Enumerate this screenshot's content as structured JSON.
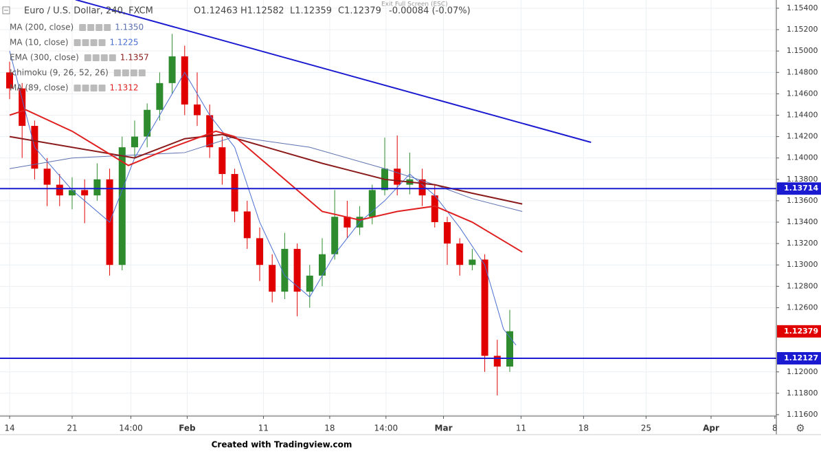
{
  "header": {
    "symbol": "Euro / U.S. Dollar, 240, FXCM",
    "open": "O1.12463",
    "high": "H1.12582",
    "low": "L1.12359",
    "close": "C1.12379",
    "change": "-0.00084 (-0.07%)",
    "exit_full_screen": "Exit Full Screen (ESC)"
  },
  "footer": "Created with Tradingview.com",
  "chart_data": {
    "type": "candlestick",
    "up_color": "#2e8b2e",
    "down_color": "#e00000",
    "xlim": [
      -0.769,
      61.32
    ],
    "xticks": [
      {
        "value": 0,
        "label": "14"
      },
      {
        "value": 5,
        "label": "21"
      },
      {
        "value": 9.7,
        "label": "14:00"
      },
      {
        "value": 14.2,
        "label": "Feb"
      },
      {
        "value": 20.3,
        "label": "11"
      },
      {
        "value": 25.6,
        "label": "18"
      },
      {
        "value": 30.1,
        "label": "14:00"
      },
      {
        "value": 34.7,
        "label": "Mar"
      },
      {
        "value": 40.9,
        "label": "11"
      },
      {
        "value": 45.9,
        "label": "18"
      },
      {
        "value": 50.9,
        "label": "25"
      },
      {
        "value": 56.1,
        "label": "Apr"
      },
      {
        "value": 61.2,
        "label": "8"
      }
    ],
    "ylim": [
      1.11587,
      1.15477
    ],
    "yticks": [
      {
        "value": 1.154,
        "label": "1.15400"
      },
      {
        "value": 1.152,
        "label": "1.15200"
      },
      {
        "value": 1.15,
        "label": "1.15000"
      },
      {
        "value": 1.148,
        "label": "1.14800"
      },
      {
        "value": 1.146,
        "label": "1.14600"
      },
      {
        "value": 1.144,
        "label": "1.14400"
      },
      {
        "value": 1.142,
        "label": "1.14200"
      },
      {
        "value": 1.14,
        "label": "1.14000"
      },
      {
        "value": 1.138,
        "label": "1.13800"
      },
      {
        "value": 1.136,
        "label": "1.13600"
      },
      {
        "value": 1.134,
        "label": "1.13400"
      },
      {
        "value": 1.132,
        "label": "1.13200"
      },
      {
        "value": 1.13,
        "label": "1.13000"
      },
      {
        "value": 1.128,
        "label": "1.12800"
      },
      {
        "value": 1.126,
        "label": "1.12600"
      },
      {
        "value": 1.12,
        "label": "1.12000"
      },
      {
        "value": 1.118,
        "label": "1.11800"
      },
      {
        "value": 1.116,
        "label": "1.11600"
      }
    ],
    "grid": true,
    "x": [
      0,
      1,
      2,
      3,
      4,
      5,
      6,
      7,
      8,
      9,
      10,
      11,
      12,
      13,
      14,
      15,
      16,
      17,
      18,
      19,
      20,
      21,
      22,
      23,
      24,
      25,
      26,
      27,
      28,
      29,
      30,
      31,
      32,
      33,
      34,
      35,
      36,
      37,
      38,
      39,
      40
    ],
    "open": [
      1.148,
      1.1465,
      1.143,
      1.139,
      1.1375,
      1.1365,
      1.137,
      1.1365,
      1.138,
      1.13,
      1.141,
      1.142,
      1.1445,
      1.147,
      1.1495,
      1.145,
      1.144,
      1.141,
      1.1385,
      1.135,
      1.1325,
      1.13,
      1.1275,
      1.1315,
      1.1275,
      1.129,
      1.131,
      1.1345,
      1.1335,
      1.1345,
      1.137,
      1.139,
      1.1375,
      1.138,
      1.1365,
      1.134,
      1.132,
      1.13,
      1.1305,
      1.1215,
      1.1205
    ],
    "high": [
      1.149,
      1.147,
      1.1435,
      1.14,
      1.1385,
      1.1382,
      1.138,
      1.1395,
      1.139,
      1.142,
      1.1435,
      1.1451,
      1.148,
      1.1516,
      1.1505,
      1.148,
      1.145,
      1.142,
      1.139,
      1.136,
      1.1335,
      1.131,
      1.133,
      1.132,
      1.13,
      1.1325,
      1.137,
      1.136,
      1.1355,
      1.1375,
      1.1419,
      1.1421,
      1.1405,
      1.139,
      1.1375,
      1.1345,
      1.1325,
      1.1315,
      1.131,
      1.123,
      1.1258
    ],
    "low": [
      1.1455,
      1.14,
      1.138,
      1.1355,
      1.1355,
      1.1352,
      1.1339,
      1.136,
      1.129,
      1.1295,
      1.14,
      1.141,
      1.1435,
      1.146,
      1.144,
      1.143,
      1.14,
      1.1375,
      1.134,
      1.1315,
      1.1285,
      1.1265,
      1.1268,
      1.1252,
      1.126,
      1.128,
      1.1305,
      1.1325,
      1.1328,
      1.1338,
      1.1365,
      1.1365,
      1.1366,
      1.1355,
      1.1335,
      1.13,
      1.129,
      1.1295,
      1.12,
      1.1178,
      1.12
    ],
    "close": [
      1.1465,
      1.143,
      1.139,
      1.1375,
      1.1365,
      1.137,
      1.1365,
      1.138,
      1.13,
      1.141,
      1.142,
      1.1445,
      1.147,
      1.1495,
      1.145,
      1.144,
      1.141,
      1.1385,
      1.135,
      1.1325,
      1.13,
      1.1275,
      1.1315,
      1.1275,
      1.129,
      1.131,
      1.1345,
      1.1335,
      1.1345,
      1.137,
      1.139,
      1.1375,
      1.138,
      1.1365,
      1.134,
      1.132,
      1.13,
      1.1305,
      1.1215,
      1.1205,
      1.1238
    ],
    "series": [
      {
        "name": "MA (200, close)",
        "last_label": "1.1350",
        "color": "#5b6fae",
        "width": 1,
        "x": [
          0,
          5,
          14,
          18,
          24,
          30,
          34,
          37,
          41
        ],
        "values": [
          1.139,
          1.14,
          1.1405,
          1.142,
          1.141,
          1.139,
          1.1375,
          1.1362,
          1.135
        ]
      },
      {
        "name": "MA (10, close)",
        "last_label": "1.1225",
        "color": "#4a6fd0",
        "width": 1,
        "x": [
          0,
          2,
          5,
          8,
          10,
          12,
          14,
          16,
          18,
          20,
          22,
          24,
          26,
          28,
          30,
          32,
          34,
          36,
          38,
          39.5,
          40.5
        ],
        "values": [
          1.15,
          1.141,
          1.137,
          1.134,
          1.14,
          1.144,
          1.148,
          1.144,
          1.141,
          1.134,
          1.129,
          1.127,
          1.131,
          1.134,
          1.136,
          1.1385,
          1.1365,
          1.1335,
          1.13,
          1.124,
          1.1225
        ]
      },
      {
        "name": "EMA (300, close)",
        "last_label": "1.1357",
        "color": "#8b1a1a",
        "width": 2,
        "x": [
          0,
          10,
          14,
          17,
          25,
          30,
          34,
          37,
          41
        ],
        "values": [
          1.142,
          1.14,
          1.1418,
          1.1422,
          1.1395,
          1.138,
          1.1375,
          1.1367,
          1.1357
        ]
      },
      {
        "name": "MA (89, close)",
        "last_label": "1.1312",
        "color": "#e02020",
        "width": 2,
        "x": [
          0,
          1.3,
          5,
          9.5,
          13,
          16.5,
          18,
          21,
          25,
          28,
          31,
          34,
          37,
          41
        ],
        "values": [
          1.144,
          1.1445,
          1.1425,
          1.1393,
          1.141,
          1.1425,
          1.142,
          1.139,
          1.135,
          1.1342,
          1.135,
          1.1355,
          1.134,
          1.1312
        ]
      }
    ],
    "legend_extra": "Ichimoku (9, 26, 52, 26)",
    "trendline": {
      "color": "#1a1ad0",
      "x": [
        5.27,
        46.5
      ],
      "values": [
        1.1548,
        1.14146
      ]
    },
    "levels": [
      1.13714,
      1.12127
    ],
    "level_color": "#1a1ad0",
    "last_price": 1.12379
  }
}
